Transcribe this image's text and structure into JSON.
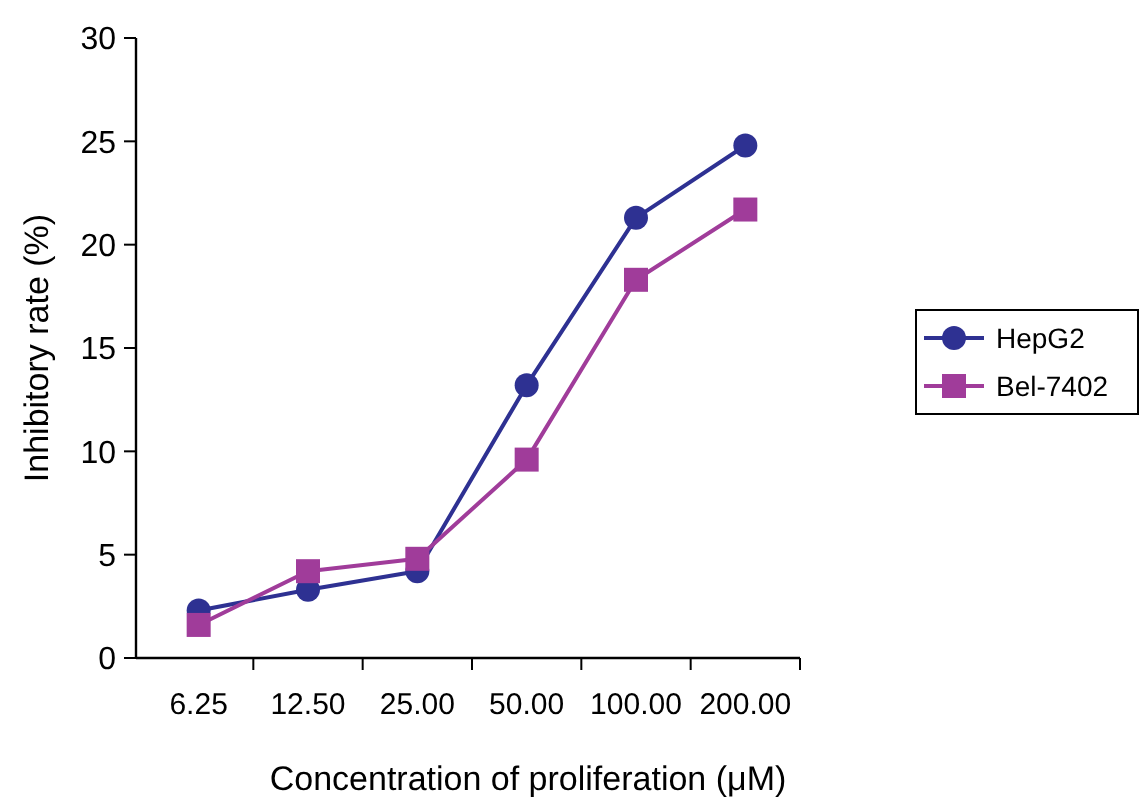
{
  "chart_data": {
    "type": "line",
    "xlabel": "Concentration of proliferation (μM)",
    "ylabel": "Inhibitory rate (%)",
    "categories": [
      "6.25",
      "12.50",
      "25.00",
      "50.00",
      "100.00",
      "200.00"
    ],
    "series": [
      {
        "name": "HepG2",
        "color": "#2e3192",
        "marker": "circle",
        "values": [
          2.3,
          3.3,
          4.2,
          13.2,
          21.3,
          24.8
        ]
      },
      {
        "name": "Bel-7402",
        "color": "#a03c9a",
        "marker": "square",
        "values": [
          1.6,
          4.2,
          4.8,
          9.6,
          18.3,
          21.7
        ]
      }
    ],
    "ylim": [
      0,
      30
    ],
    "yticks": [
      0,
      5,
      10,
      15,
      20,
      25,
      30
    ],
    "grid": false,
    "legend": "right"
  }
}
